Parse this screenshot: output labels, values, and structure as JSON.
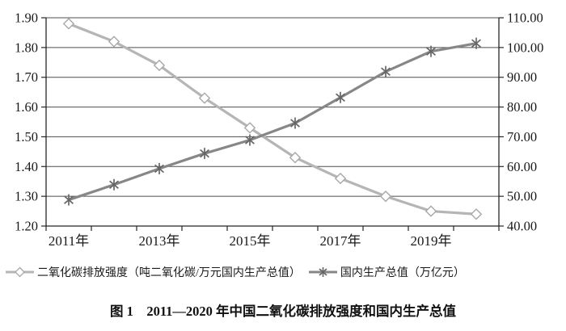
{
  "figure": {
    "caption": "图 1　2011—2020 年中国二氧化碳排放强度和国内生产总值"
  },
  "chart_data": {
    "type": "line",
    "categories": [
      "2011",
      "2012",
      "2013",
      "2014",
      "2015",
      "2016",
      "2017",
      "2018",
      "2019",
      "2020"
    ],
    "x_tick_labels": [
      "2011年",
      "2013年",
      "2015年",
      "2017年",
      "2019年"
    ],
    "x_tick_label_positions": [
      0,
      2,
      4,
      6,
      8
    ],
    "series": [
      {
        "name": "二氧化碳排放强度（吨二氧化碳/万元国内生产总值）",
        "axis": "left",
        "marker": "diamond",
        "line_color": "#b5b5b5",
        "marker_color": "#a8a8a8",
        "values": [
          1.88,
          1.82,
          1.74,
          1.63,
          1.53,
          1.43,
          1.36,
          1.3,
          1.25,
          1.24
        ]
      },
      {
        "name": "国内生产总值（万亿元）",
        "axis": "right",
        "marker": "asterisk",
        "line_color": "#878787",
        "marker_color": "#666666",
        "values": [
          48.8,
          53.9,
          59.3,
          64.4,
          68.9,
          74.6,
          83.2,
          91.9,
          98.7,
          101.4
        ]
      }
    ],
    "left_axis": {
      "min": 1.2,
      "max": 1.9,
      "step": 0.1,
      "tick_labels": [
        "1.20",
        "1.30",
        "1.40",
        "1.50",
        "1.60",
        "1.70",
        "1.80",
        "1.90"
      ]
    },
    "right_axis": {
      "min": 40,
      "max": 110,
      "step": 10,
      "tick_labels": [
        "40.00",
        "50.00",
        "60.00",
        "70.00",
        "80.00",
        "90.00",
        "100.00",
        "110.00"
      ]
    },
    "grid": true,
    "legend_position": "bottom",
    "colors": {
      "gridline": "#4d4d4d",
      "axis_line": "#262626",
      "tick_text": "#1a1a1a",
      "background": "#ffffff"
    }
  }
}
